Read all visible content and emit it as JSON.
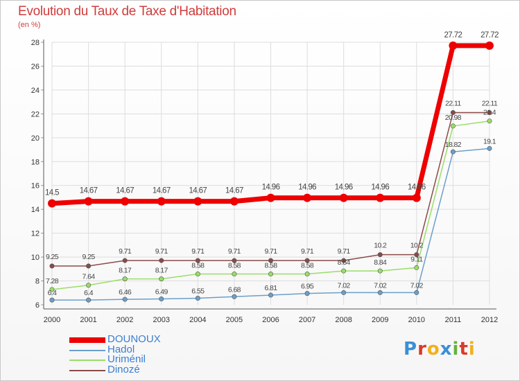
{
  "header": {
    "title": "Evolution du Taux de Taxe d'Habitation",
    "unit": "(en %)"
  },
  "chart_data": {
    "type": "line",
    "title": "Evolution du Taux de Taxe d'Habitation",
    "ylabel": "(en %)",
    "xlabel": "",
    "x": [
      "2000",
      "2001",
      "2002",
      "2003",
      "2004",
      "2005",
      "2006",
      "2007",
      "2008",
      "2009",
      "2010",
      "2011",
      "2012"
    ],
    "ylim": [
      6,
      28
    ],
    "yticks": [
      "6",
      "8",
      "10",
      "12",
      "14",
      "16",
      "18",
      "20",
      "22",
      "24",
      "26",
      "28"
    ],
    "grid": true,
    "legend_position": "bottom-left",
    "series": [
      {
        "name": "DOUNOUX",
        "color": "#ee0000",
        "values": [
          14.5,
          14.67,
          14.67,
          14.67,
          14.67,
          14.67,
          14.96,
          14.96,
          14.96,
          14.96,
          14.96,
          27.72,
          27.72
        ],
        "labels": [
          "14.5",
          "14.67",
          "14.67",
          "14.67",
          "14.67",
          "14.67",
          "14.96",
          "14.96",
          "14.96",
          "14.96",
          "14.96",
          "27.72",
          "27.72"
        ]
      },
      {
        "name": "Hadol",
        "color": "#6a9fcb",
        "values": [
          6.4,
          6.4,
          6.46,
          6.49,
          6.55,
          6.68,
          6.81,
          6.95,
          7.02,
          7.02,
          7.02,
          18.82,
          19.1
        ],
        "labels": [
          "6.4",
          "6.4",
          "6.46",
          "6.49",
          "6.55",
          "6.68",
          "6.81",
          "6.95",
          "7.02",
          "7.02",
          "7.02",
          "18.82",
          "19.1"
        ]
      },
      {
        "name": "Uriménil",
        "color": "#99dd66",
        "values": [
          7.28,
          7.64,
          8.17,
          8.17,
          8.58,
          8.58,
          8.58,
          8.58,
          8.84,
          8.84,
          9.11,
          20.98,
          21.4
        ],
        "labels": [
          "7.28",
          "7.64",
          "8.17",
          "8.17",
          "8.58",
          "8.58",
          "8.58",
          "8.58",
          "8.84",
          "8.84",
          "9.11",
          "20.98",
          "21.4"
        ]
      },
      {
        "name": "Dinozé",
        "color": "#8b4a4a",
        "values": [
          9.25,
          9.25,
          9.71,
          9.71,
          9.71,
          9.71,
          9.71,
          9.71,
          9.71,
          10.2,
          10.2,
          22.11,
          22.11
        ],
        "labels": [
          "9.25",
          "9.25",
          "9.71",
          "9.71",
          "9.71",
          "9.71",
          "9.71",
          "9.71",
          "9.71",
          "10.2",
          "10.2",
          "22.11",
          "22.11"
        ]
      }
    ]
  },
  "legend": {
    "items": [
      "DOUNOUX",
      "Hadol",
      "Uriménil",
      "Dinozé"
    ]
  },
  "logo": {
    "letters": [
      "P",
      "r",
      "o",
      "x",
      "i",
      "t",
      "i"
    ],
    "colors": [
      "#3b8fd6",
      "#d93a2b",
      "#f2b01e",
      "#3b8fd6",
      "#64b33a",
      "#d93a2b",
      "#f2b01e"
    ]
  }
}
